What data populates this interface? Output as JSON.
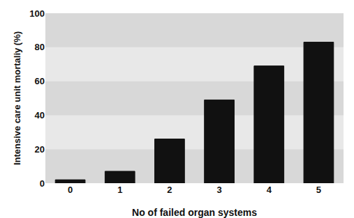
{
  "chart_data": {
    "type": "bar",
    "categories": [
      0,
      1,
      2,
      3,
      4,
      5
    ],
    "values": [
      2,
      7,
      26,
      49,
      69,
      83
    ],
    "color": "#111111",
    "xlabel": "No of failed organ systems",
    "ylabel": "Intensive care unit mortaliy (%)",
    "ylim": [
      0,
      100
    ],
    "yticks": [
      0,
      20,
      40,
      60,
      80,
      100
    ]
  }
}
